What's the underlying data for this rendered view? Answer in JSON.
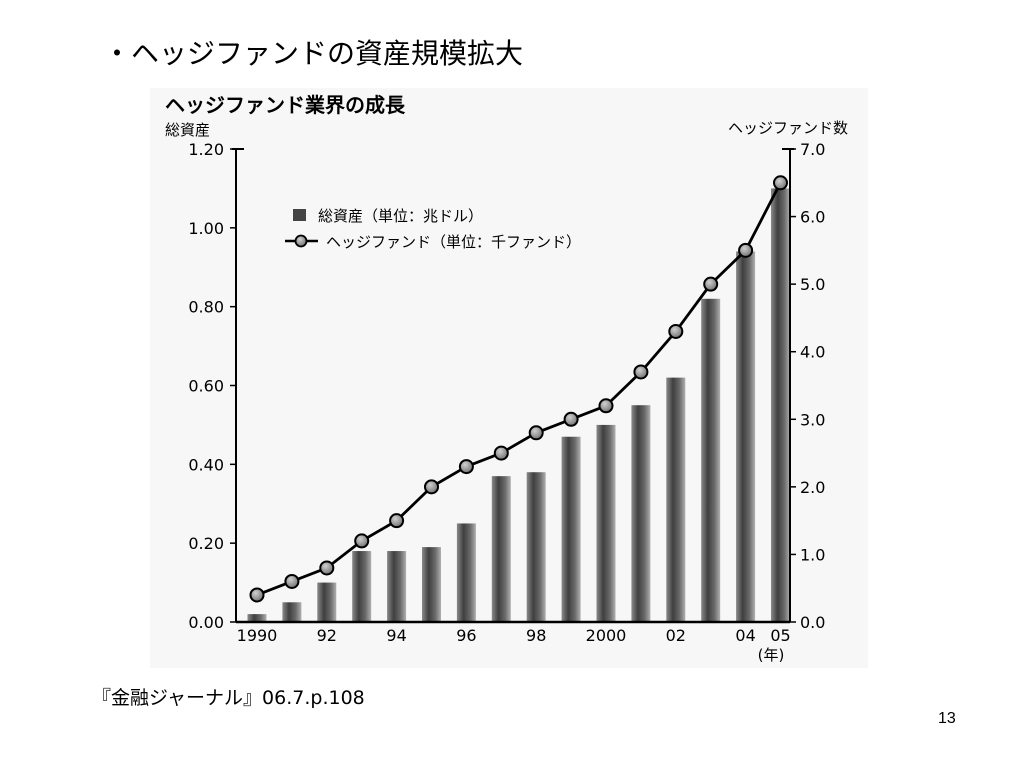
{
  "slide": {
    "title": "・ヘッジファンドの資産規模拡大",
    "source": "『金融ジャーナル』06.7.p.108",
    "page_number": "13"
  },
  "chart_data": {
    "type": "bar",
    "title": "ヘッジファンド業界の成長",
    "categories": [
      "1990",
      "1991",
      "1992",
      "1993",
      "1994",
      "1995",
      "1996",
      "1997",
      "1998",
      "1999",
      "2000",
      "2001",
      "2002",
      "2003",
      "2004",
      "2005"
    ],
    "x_tick_labels": [
      {
        "index": 0,
        "label": "1990"
      },
      {
        "index": 2,
        "label": "92"
      },
      {
        "index": 4,
        "label": "94"
      },
      {
        "index": 6,
        "label": "96"
      },
      {
        "index": 8,
        "label": "98"
      },
      {
        "index": 10,
        "label": "2000"
      },
      {
        "index": 12,
        "label": "02"
      },
      {
        "index": 14,
        "label": "04"
      },
      {
        "index": 15,
        "label": "05"
      }
    ],
    "x_unit": "(年)",
    "left_axis": {
      "label": "総資産",
      "ylim": [
        0,
        1.2
      ],
      "ticks": [
        "0.00",
        "0.20",
        "0.40",
        "0.60",
        "0.80",
        "1.00",
        "1.20"
      ]
    },
    "right_axis": {
      "label": "ヘッジファンド数",
      "ylim": [
        0,
        7.0
      ],
      "ticks": [
        "0.0",
        "1.0",
        "2.0",
        "3.0",
        "4.0",
        "5.0",
        "6.0",
        "7.0"
      ]
    },
    "series": [
      {
        "name": "総資産（単位：兆ドル）",
        "type": "bar",
        "axis": "left",
        "values": [
          0.02,
          0.05,
          0.1,
          0.18,
          0.18,
          0.19,
          0.25,
          0.37,
          0.38,
          0.47,
          0.5,
          0.55,
          0.62,
          0.82,
          0.94,
          1.1
        ]
      },
      {
        "name": "ヘッジファンド（単位：千ファンド）",
        "type": "line",
        "axis": "right",
        "values": [
          0.4,
          0.6,
          0.8,
          1.2,
          1.5,
          2.0,
          2.3,
          2.5,
          2.8,
          3.0,
          3.2,
          3.7,
          4.3,
          5.0,
          5.5,
          6.5
        ]
      }
    ],
    "legend_position": "top-left",
    "grid": false,
    "colors": {
      "bar": "#555555",
      "line": "#000000",
      "marker_fill": "#9a9a9a"
    }
  }
}
